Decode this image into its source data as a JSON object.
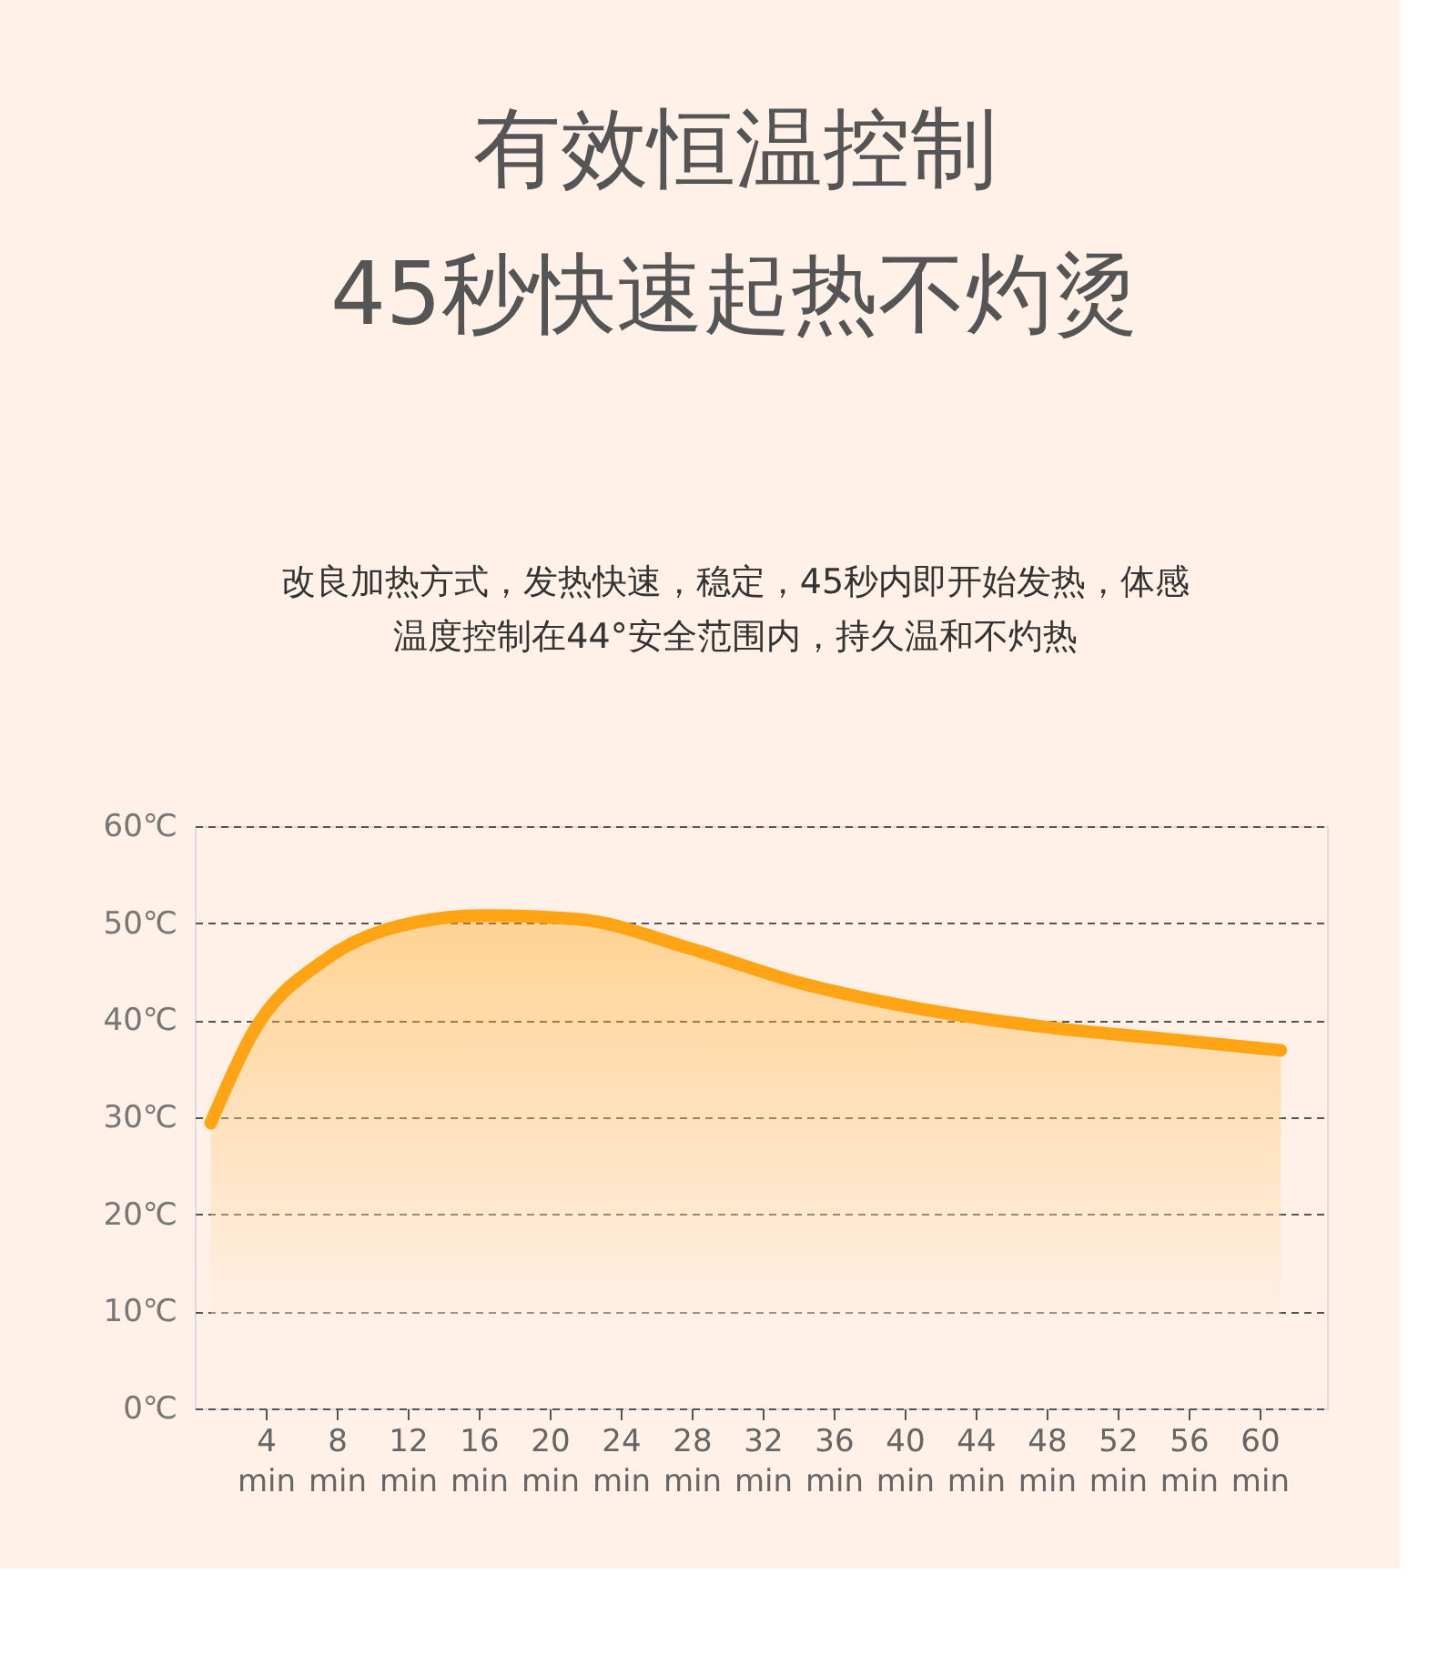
{
  "chart_data": {
    "type": "area",
    "title": "有效恒温控制\n45秒快速起热不灼烫",
    "subtitle": "改良加热方式，发热快速，稳定，45秒内即开始发热，体感温度控制在44°安全范围内，持久温和不灼热",
    "series": [
      {
        "color": "#ffa414",
        "x": [
          0.9,
          3.3,
          7.4,
          11.5,
          16.4,
          21.7,
          27.9,
          34,
          40.2,
          48.4,
          54.6,
          61.2
        ],
        "values": [
          29.4,
          38.8,
          46.3,
          49.7,
          50.8,
          50.4,
          47.4,
          43.9,
          41.4,
          39.2,
          38.1,
          36.9
        ]
      }
    ],
    "xlim": [
      0,
      63.8
    ],
    "xticks": [
      {
        "value": 4,
        "label": "4 min"
      },
      {
        "value": 8,
        "label": "8 min"
      },
      {
        "value": 12,
        "label": "12 min"
      },
      {
        "value": 16,
        "label": "16 min"
      },
      {
        "value": 20,
        "label": "20 min"
      },
      {
        "value": 24,
        "label": "24 min"
      },
      {
        "value": 28,
        "label": "28 min"
      },
      {
        "value": 32,
        "label": "32 min"
      },
      {
        "value": 36,
        "label": "36 min"
      },
      {
        "value": 40,
        "label": "40 min"
      },
      {
        "value": 44,
        "label": "44 min"
      },
      {
        "value": 48,
        "label": "48 min"
      },
      {
        "value": 52,
        "label": "52 min"
      },
      {
        "value": 56,
        "label": "56 min"
      },
      {
        "value": 60,
        "label": "60 min"
      }
    ],
    "ylim": [
      0,
      60
    ],
    "yticks": [
      {
        "value": 0,
        "label": "0℃"
      },
      {
        "value": 10,
        "label": "10℃"
      },
      {
        "value": 20,
        "label": "20℃"
      },
      {
        "value": 30,
        "label": "30℃"
      },
      {
        "value": 40,
        "label": "40℃"
      },
      {
        "value": 50,
        "label": "50℃"
      },
      {
        "value": 60,
        "label": "60℃"
      }
    ],
    "grid": "y"
  }
}
